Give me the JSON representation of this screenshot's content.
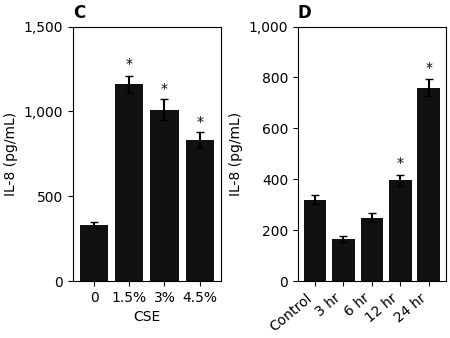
{
  "chart_data": [
    {
      "type": "bar",
      "title": "C",
      "categories": [
        "0",
        "1.5%",
        "3%",
        "4.5%"
      ],
      "values": [
        330,
        1160,
        1010,
        830
      ],
      "errors": [
        18,
        50,
        60,
        48
      ],
      "xlabel": "CSE",
      "ylabel": "IL-8 (pg/mL)",
      "ylim": [
        0,
        1500
      ],
      "yticks": [
        0,
        500,
        {
          "value": 1000,
          "label": "1,000"
        },
        {
          "value": 1500,
          "label": "1,500"
        }
      ],
      "color": "#111111",
      "annotations": [
        {
          "text": "*",
          "x": "1.5%",
          "y": 1220
        },
        {
          "text": "*",
          "x": "3%",
          "y": 1075
        },
        {
          "text": "*",
          "x": "4.5%",
          "y": 880
        }
      ]
    },
    {
      "type": "bar",
      "title": "D",
      "categories": [
        "Control",
        "3 hr",
        "6 hr",
        "12 hr",
        "24 hr"
      ],
      "values": [
        320,
        165,
        248,
        395,
        760
      ],
      "errors": [
        18,
        12,
        18,
        22,
        32
      ],
      "ylabel": "IL-8 (pg/mL)",
      "ylim": [
        0,
        1000
      ],
      "yticks": [
        0,
        200,
        400,
        600,
        800,
        {
          "value": 1000,
          "label": "1,000"
        }
      ],
      "color": "#111111",
      "annotations": [
        {
          "text": "*",
          "x": "12 hr",
          "y": 425
        },
        {
          "text": "*",
          "x": "24 hr",
          "y": 800
        }
      ]
    }
  ]
}
